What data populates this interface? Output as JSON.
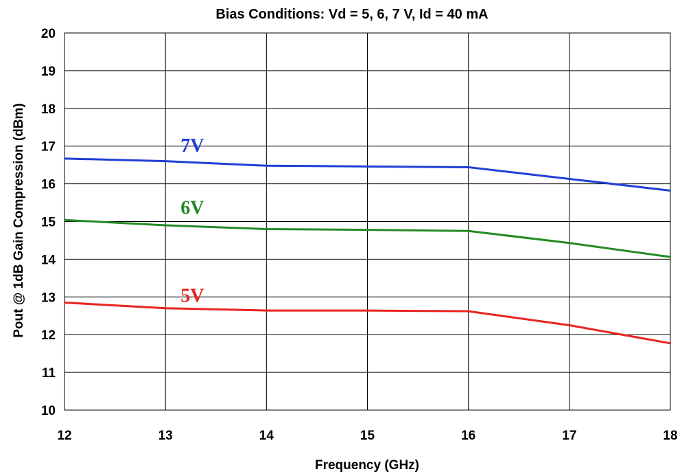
{
  "chart_data": {
    "type": "line",
    "title": "Bias Conditions:  Vd = 5, 6, 7 V, Id = 40 mA",
    "xlabel": "Frequency (GHz)",
    "ylabel": "Pout @ 1dB Gain Compression (dBm)",
    "x": [
      12,
      13,
      14,
      15,
      16,
      17,
      18
    ],
    "xticks": [
      "12",
      "13",
      "14",
      "15",
      "16",
      "17",
      "18"
    ],
    "yticks": [
      "10",
      "11",
      "12",
      "13",
      "14",
      "15",
      "16",
      "17",
      "18",
      "19",
      "20"
    ],
    "xlim": [
      12,
      18
    ],
    "ylim": [
      10,
      20
    ],
    "grid": true,
    "series": [
      {
        "name": "7V",
        "color": "#1f3fd6",
        "values": [
          16.67,
          16.6,
          16.48,
          16.46,
          16.44,
          16.13,
          15.82
        ],
        "label_x": 13.15,
        "label_y": 16.85
      },
      {
        "name": "6V",
        "color": "#238b23",
        "values": [
          15.04,
          14.9,
          14.8,
          14.78,
          14.75,
          14.43,
          14.06
        ],
        "label_x": 13.15,
        "label_y": 15.2
      },
      {
        "name": "5V",
        "color": "#e8231f",
        "values": [
          12.85,
          12.7,
          12.64,
          12.64,
          12.62,
          12.25,
          11.77
        ],
        "label_x": 13.15,
        "label_y": 12.87
      }
    ]
  }
}
